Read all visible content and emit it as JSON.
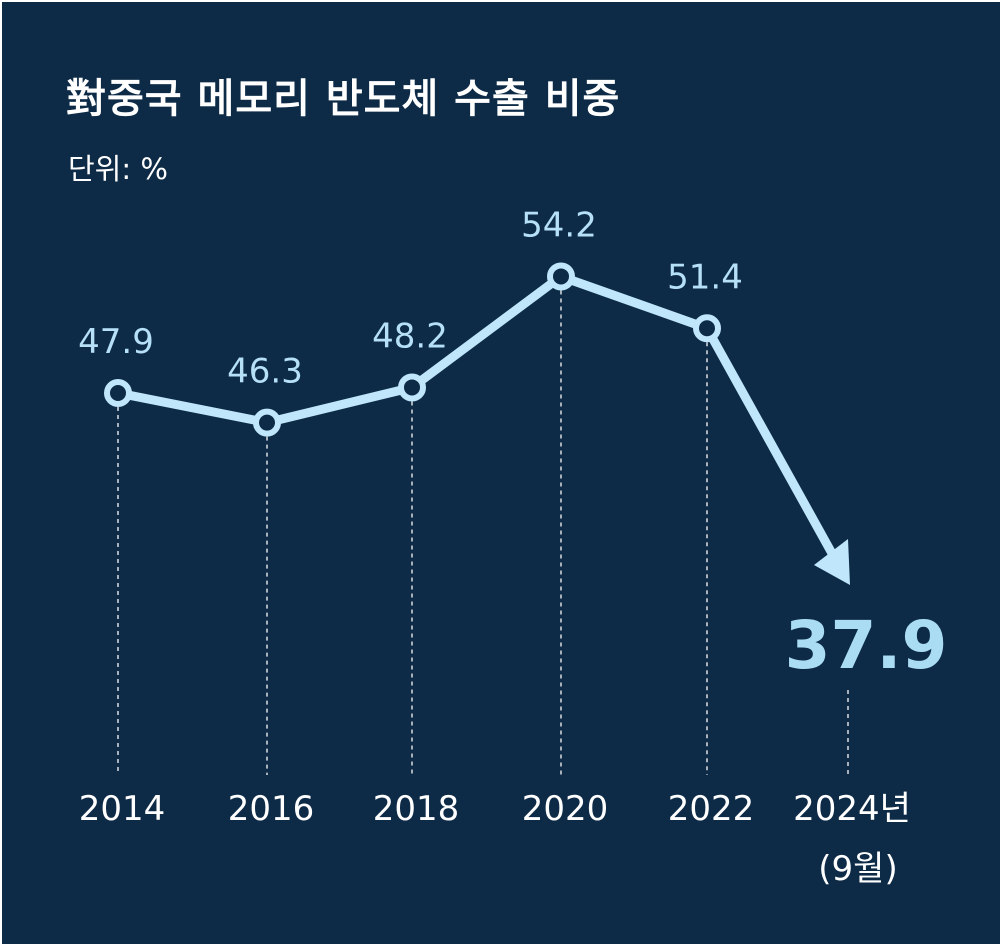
{
  "chart_data": {
    "type": "line",
    "title": "對중국 메모리 반도체 수출 비중",
    "unit_label": "단위: %",
    "categories": [
      "2014",
      "2016",
      "2018",
      "2020",
      "2022",
      "2024년"
    ],
    "category_sublabels": [
      "",
      "",
      "",
      "",
      "",
      "(9월)"
    ],
    "values": [
      47.9,
      46.3,
      48.2,
      54.2,
      51.4,
      37.9
    ],
    "value_labels": [
      "47.9",
      "46.3",
      "48.2",
      "54.2",
      "51.4",
      "37.9"
    ],
    "final_point_style": "arrow",
    "colors": {
      "background": "#0d2b47",
      "line": "#bfe6fa",
      "label": "#b5e0f6",
      "final_label": "#aadcf4",
      "text": "#ffffff"
    }
  }
}
